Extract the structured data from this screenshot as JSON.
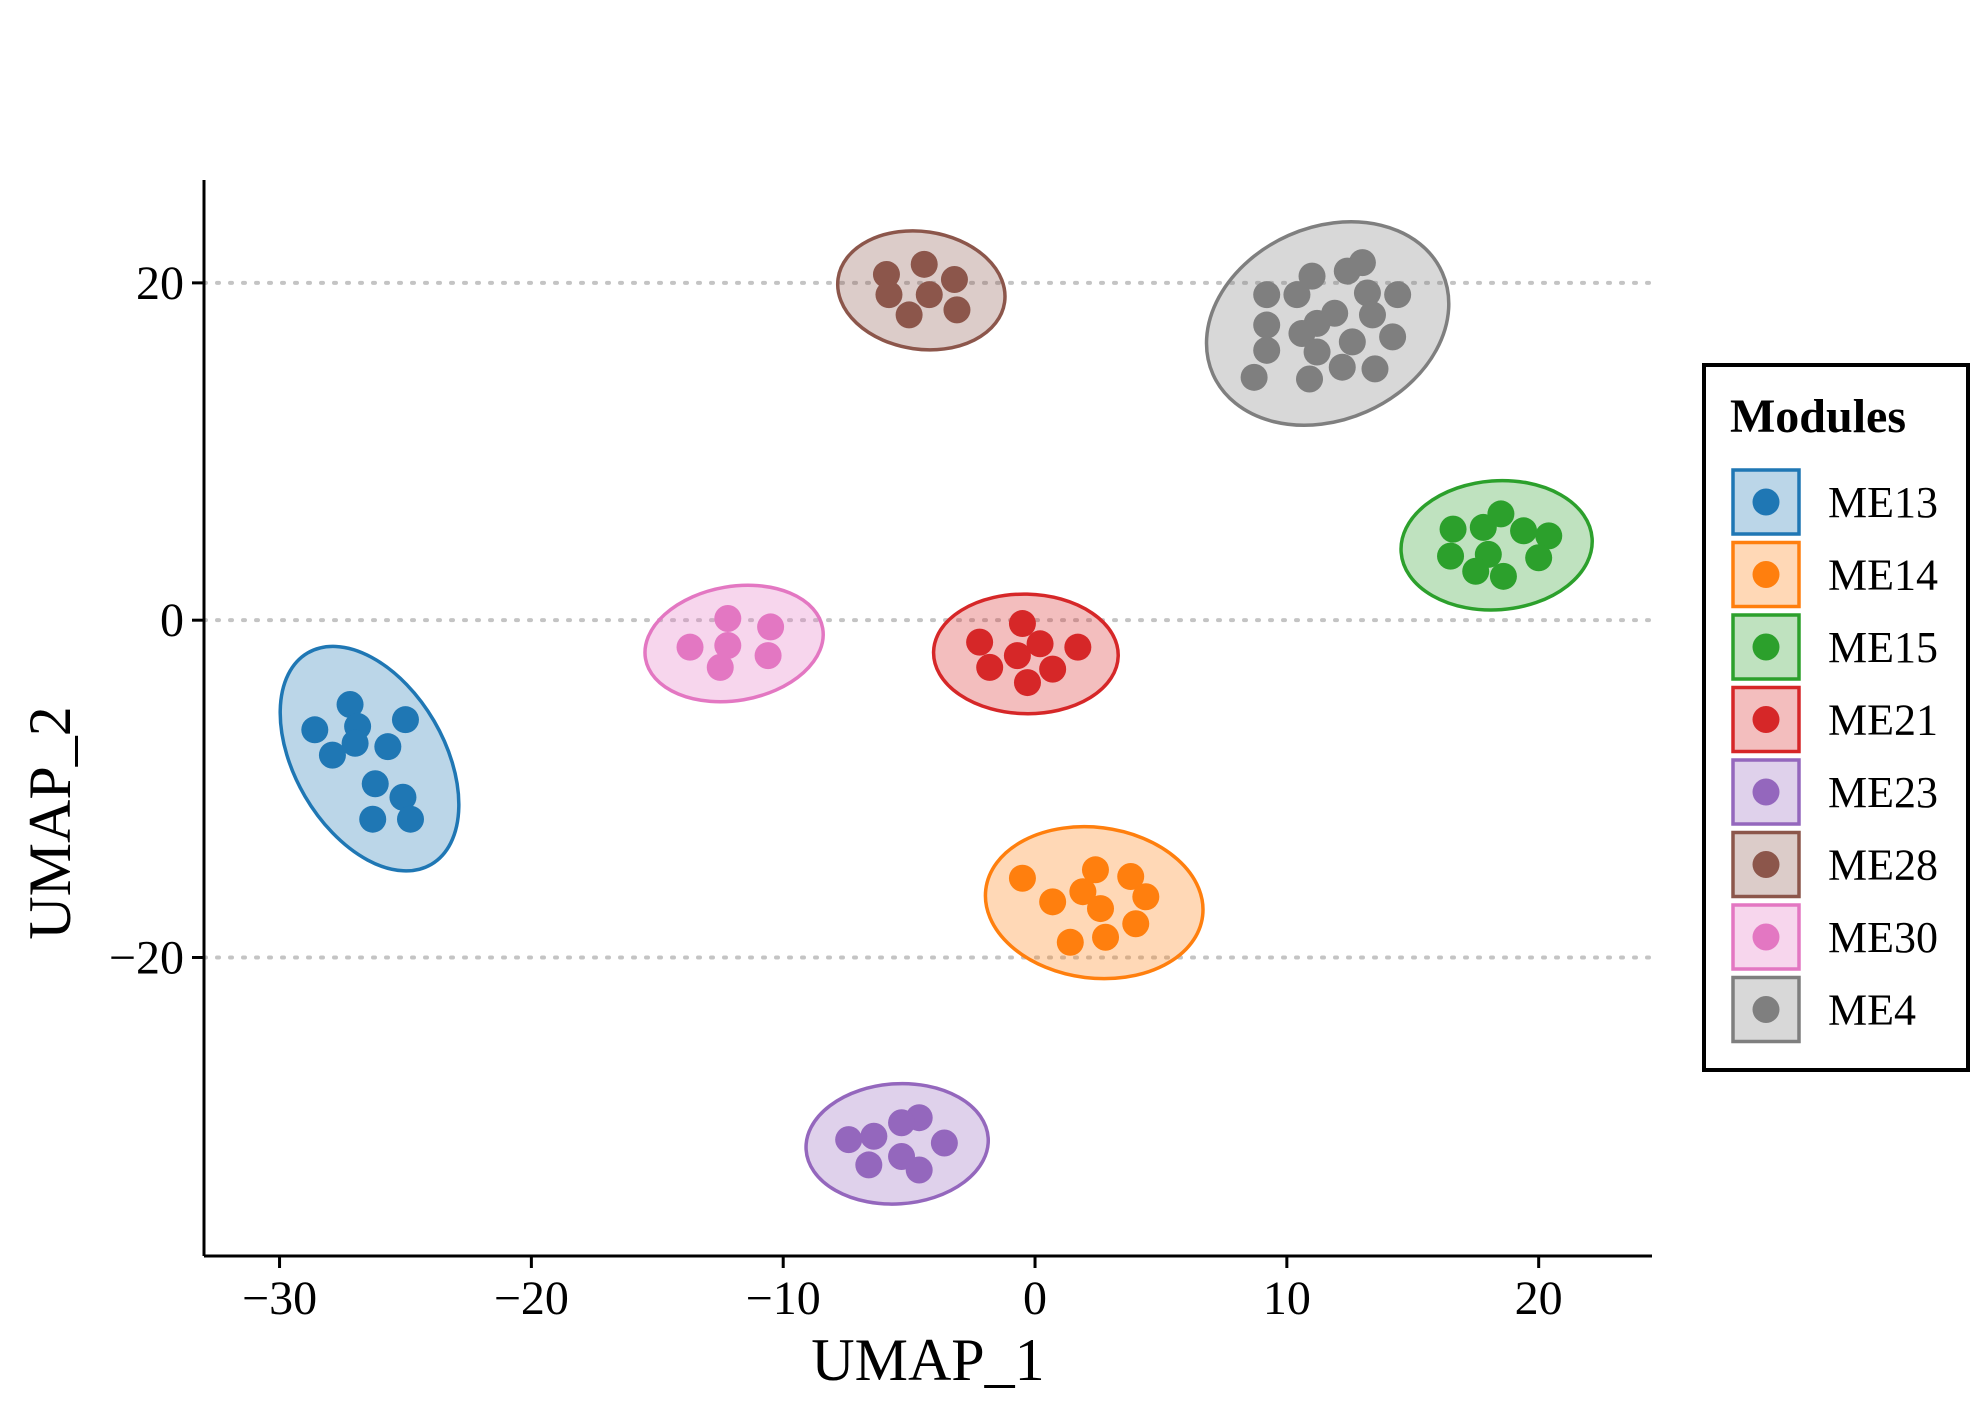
{
  "chart_data": {
    "type": "scatter",
    "title": "",
    "xlabel": "UMAP_1",
    "ylabel": "UMAP_2",
    "xlim": [
      -33,
      24.5
    ],
    "ylim": [
      -37.7,
      26.1
    ],
    "x_ticks": [
      -30,
      -20,
      -10,
      0,
      10,
      20
    ],
    "y_ticks": [
      -20,
      0,
      20
    ],
    "x_tick_labels": [
      "−30",
      "−20",
      "−10",
      "0",
      "10",
      "20"
    ],
    "y_tick_labels": [
      "−20",
      "0",
      "20"
    ],
    "grid": "horizontal dotted at y ticks",
    "ellipses": true,
    "legend": {
      "title": "Modules",
      "position": "right"
    },
    "series": [
      {
        "name": "ME13",
        "color": "#1f77b4",
        "points": [
          [
            -27.2,
            -5.0
          ],
          [
            -28.6,
            -6.5
          ],
          [
            -26.9,
            -6.3
          ],
          [
            -25.0,
            -5.9
          ],
          [
            -27.0,
            -7.3
          ],
          [
            -25.7,
            -7.5
          ],
          [
            -27.9,
            -8.0
          ],
          [
            -26.2,
            -9.7
          ],
          [
            -25.1,
            -10.5
          ],
          [
            -26.3,
            -11.8
          ],
          [
            -24.8,
            -11.8
          ]
        ]
      },
      {
        "name": "ME14",
        "color": "#ff7f0e",
        "points": [
          [
            -0.5,
            -15.3
          ],
          [
            2.4,
            -14.8
          ],
          [
            3.8,
            -15.2
          ],
          [
            0.7,
            -16.7
          ],
          [
            1.9,
            -16.1
          ],
          [
            2.6,
            -17.1
          ],
          [
            4.4,
            -16.4
          ],
          [
            4.0,
            -18.0
          ],
          [
            1.4,
            -19.1
          ],
          [
            2.8,
            -18.8
          ]
        ]
      },
      {
        "name": "ME15",
        "color": "#2ca02c",
        "points": [
          [
            18.5,
            6.3
          ],
          [
            16.6,
            5.4
          ],
          [
            17.8,
            5.5
          ],
          [
            19.4,
            5.3
          ],
          [
            20.4,
            5.0
          ],
          [
            16.5,
            3.8
          ],
          [
            18.0,
            3.9
          ],
          [
            20.0,
            3.7
          ],
          [
            17.5,
            2.9
          ],
          [
            18.6,
            2.6
          ]
        ]
      },
      {
        "name": "ME21",
        "color": "#d62728",
        "points": [
          [
            -0.5,
            -0.2
          ],
          [
            -2.2,
            -1.3
          ],
          [
            0.2,
            -1.4
          ],
          [
            1.7,
            -1.6
          ],
          [
            -0.7,
            -2.1
          ],
          [
            -1.8,
            -2.8
          ],
          [
            0.7,
            -2.9
          ],
          [
            -0.3,
            -3.7
          ]
        ]
      },
      {
        "name": "ME23",
        "color": "#9467bd",
        "points": [
          [
            -4.6,
            -29.5
          ],
          [
            -5.3,
            -29.8
          ],
          [
            -6.4,
            -30.6
          ],
          [
            -7.4,
            -30.8
          ],
          [
            -3.6,
            -31.0
          ],
          [
            -5.3,
            -31.8
          ],
          [
            -6.6,
            -32.3
          ],
          [
            -4.6,
            -32.6
          ]
        ]
      },
      {
        "name": "ME28",
        "color": "#8c564b",
        "points": [
          [
            -4.4,
            21.1
          ],
          [
            -5.9,
            20.5
          ],
          [
            -3.2,
            20.2
          ],
          [
            -5.8,
            19.3
          ],
          [
            -4.2,
            19.3
          ],
          [
            -5.0,
            18.1
          ],
          [
            -3.1,
            18.4
          ]
        ]
      },
      {
        "name": "ME30",
        "color": "#e377c2",
        "points": [
          [
            -12.2,
            0.1
          ],
          [
            -10.5,
            -0.4
          ],
          [
            -13.7,
            -1.6
          ],
          [
            -12.2,
            -1.5
          ],
          [
            -10.6,
            -2.1
          ],
          [
            -12.5,
            -2.8
          ]
        ]
      },
      {
        "name": "ME4",
        "color": "#7f7f7f",
        "points": [
          [
            13.0,
            21.2
          ],
          [
            11.0,
            20.4
          ],
          [
            12.4,
            20.7
          ],
          [
            9.2,
            19.3
          ],
          [
            10.4,
            19.3
          ],
          [
            13.2,
            19.4
          ],
          [
            14.4,
            19.3
          ],
          [
            11.2,
            17.6
          ],
          [
            11.9,
            18.2
          ],
          [
            13.4,
            18.1
          ],
          [
            9.2,
            17.5
          ],
          [
            10.6,
            17.0
          ],
          [
            12.6,
            16.5
          ],
          [
            14.2,
            16.8
          ],
          [
            9.2,
            16.0
          ],
          [
            11.2,
            15.9
          ],
          [
            8.7,
            14.4
          ],
          [
            10.9,
            14.3
          ],
          [
            12.2,
            15.0
          ],
          [
            13.5,
            14.9
          ]
        ]
      }
    ]
  }
}
